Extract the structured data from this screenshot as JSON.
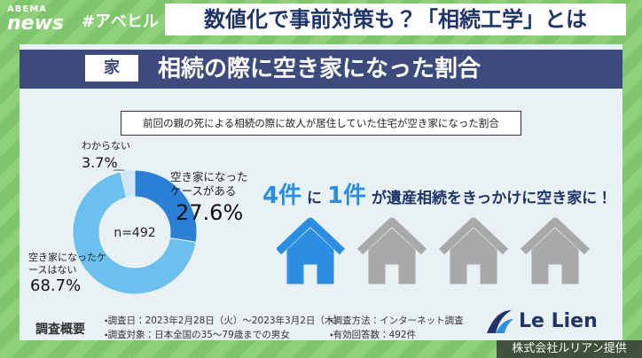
{
  "brand": {
    "top": "ABEMA",
    "bottom": "news"
  },
  "hashtag": "#アベヒル",
  "headline": "数値化で事前対策も？「相続工学」とは",
  "panel": {
    "icon": "家",
    "title": "相続の際に空き家になった割合",
    "subtitle": "前回の親の死による相続の際に故人が居住していた住宅が空き家になった割合"
  },
  "chart_data": {
    "type": "donut",
    "categories": [
      "空き家になったケースがある",
      "空き家になったケースはない",
      "わからない"
    ],
    "values": [
      27.6,
      68.7,
      3.7
    ],
    "value_labels": [
      "27.6%",
      "68.7%",
      "3.7%"
    ],
    "colors": [
      "#2b7fd4",
      "#6cc0f0",
      "#cfe7f6"
    ],
    "center_label": "n=492"
  },
  "claim": [
    "4件",
    "に",
    "1件",
    "が遺産相続をきっかけに空き家に！"
  ],
  "survey": {
    "heading": "調査概要",
    "items": [
      "・調査日：2023年2月28日（火）～2023年3月2日（木）",
      "・調査対象：日本全国の35～79歳までの男女",
      "・調査方法：インターネット調査",
      "・有効回答数：492件"
    ]
  },
  "company_logo": "Le Lien",
  "credit": "株式会社ルリアン提供"
}
